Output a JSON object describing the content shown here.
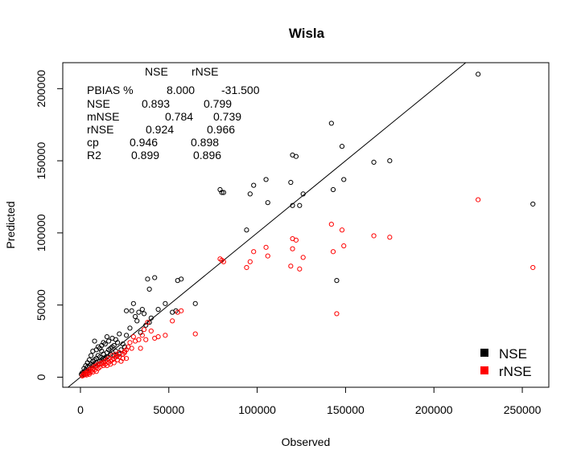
{
  "chart_data": {
    "type": "scatter",
    "title": "Wisla",
    "xlabel": "Observed",
    "ylabel": "Predicted",
    "xlim": [
      -10000,
      265000
    ],
    "ylim": [
      -7000,
      218000
    ],
    "xticks": [
      0,
      50000,
      100000,
      150000,
      200000,
      250000
    ],
    "yticks": [
      0,
      50000,
      100000,
      150000,
      200000
    ],
    "reference_line": {
      "type": "identity",
      "slope": 1,
      "intercept": 0
    },
    "stats_table": {
      "header": [
        "NSE",
        "rNSE"
      ],
      "rows": [
        {
          "label": "PBIAS %",
          "values": [
            "8.000",
            "-31.500"
          ]
        },
        {
          "label": "NSE",
          "values": [
            "0.893",
            "0.799"
          ]
        },
        {
          "label": "mNSE",
          "values": [
            "0.784",
            "0.739"
          ]
        },
        {
          "label": "rNSE",
          "values": [
            "0.924",
            "0.966"
          ]
        },
        {
          "label": "cp",
          "values": [
            "0.946",
            "0.898"
          ]
        },
        {
          "label": "R2",
          "values": [
            "0.899",
            "0.896"
          ]
        }
      ]
    },
    "legend_position": "bottom-right",
    "series": [
      {
        "name": "NSE",
        "color": "#000000",
        "points": [
          [
            225000,
            210000
          ],
          [
            256000,
            120000
          ],
          [
            166000,
            149000
          ],
          [
            175000,
            150000
          ],
          [
            142000,
            176000
          ],
          [
            148000,
            160000
          ],
          [
            149000,
            137000
          ],
          [
            143000,
            130000
          ],
          [
            145000,
            67000
          ],
          [
            120000,
            154000
          ],
          [
            122000,
            153000
          ],
          [
            126000,
            127000
          ],
          [
            124000,
            119000
          ],
          [
            119000,
            135000
          ],
          [
            120000,
            119000
          ],
          [
            105000,
            137000
          ],
          [
            106000,
            121000
          ],
          [
            98000,
            133000
          ],
          [
            96000,
            127000
          ],
          [
            94000,
            102000
          ],
          [
            79000,
            130000
          ],
          [
            80000,
            128000
          ],
          [
            81000,
            128000
          ],
          [
            65000,
            51000
          ],
          [
            57000,
            68000
          ],
          [
            55000,
            67000
          ],
          [
            42000,
            69000
          ],
          [
            38000,
            68000
          ],
          [
            39000,
            61000
          ],
          [
            48000,
            51000
          ],
          [
            44000,
            47000
          ],
          [
            52000,
            45000
          ],
          [
            54000,
            46000
          ],
          [
            30000,
            51000
          ],
          [
            29000,
            46000
          ],
          [
            26000,
            46000
          ],
          [
            33000,
            45000
          ],
          [
            35000,
            47000
          ],
          [
            36000,
            44000
          ],
          [
            31000,
            42000
          ],
          [
            32000,
            39000
          ],
          [
            40000,
            41000
          ],
          [
            39000,
            38000
          ],
          [
            28000,
            34000
          ],
          [
            37000,
            36000
          ],
          [
            34000,
            31000
          ],
          [
            26000,
            29000
          ],
          [
            22000,
            30000
          ],
          [
            20000,
            26000
          ],
          [
            18000,
            27000
          ],
          [
            16000,
            25000
          ],
          [
            15000,
            28000
          ],
          [
            13000,
            24000
          ],
          [
            12000,
            22000
          ],
          [
            8000,
            25000
          ],
          [
            11000,
            20000
          ],
          [
            14000,
            23000
          ],
          [
            10000,
            21000
          ],
          [
            9000,
            19000
          ],
          [
            7000,
            18000
          ],
          [
            6000,
            15000
          ],
          [
            5000,
            12000
          ],
          [
            4000,
            10000
          ],
          [
            3000,
            8000
          ],
          [
            2000,
            6000
          ],
          [
            1000,
            3000
          ],
          [
            500,
            2000
          ],
          [
            17000,
            20000
          ],
          [
            19000,
            22000
          ],
          [
            21000,
            24000
          ],
          [
            23000,
            19000
          ],
          [
            24000,
            23000
          ],
          [
            25000,
            21000
          ],
          [
            12000,
            18000
          ],
          [
            13000,
            16000
          ],
          [
            11000,
            14000
          ],
          [
            9000,
            13000
          ],
          [
            8000,
            12000
          ],
          [
            7000,
            11000
          ],
          [
            6000,
            9000
          ],
          [
            5000,
            8000
          ],
          [
            4000,
            7000
          ],
          [
            3000,
            5000
          ],
          [
            2500,
            4000
          ],
          [
            1500,
            2500
          ],
          [
            15000,
            17000
          ],
          [
            16000,
            19000
          ],
          [
            18000,
            21000
          ],
          [
            20000,
            18000
          ],
          [
            22000,
            16000
          ],
          [
            14000,
            13000
          ],
          [
            10000,
            15000
          ],
          [
            12000,
            12000
          ],
          [
            9000,
            10000
          ],
          [
            6000,
            6000
          ],
          [
            4000,
            4000
          ],
          [
            2000,
            2000
          ],
          [
            7000,
            8000
          ],
          [
            8000,
            9000
          ],
          [
            11000,
            11000
          ],
          [
            13000,
            13000
          ],
          [
            15000,
            14000
          ],
          [
            17000,
            16000
          ],
          [
            19000,
            15000
          ]
        ]
      },
      {
        "name": "rNSE",
        "color": "#ff0000",
        "points": [
          [
            225000,
            123000
          ],
          [
            256000,
            76000
          ],
          [
            166000,
            98000
          ],
          [
            175000,
            97000
          ],
          [
            142000,
            106000
          ],
          [
            148000,
            102000
          ],
          [
            149000,
            91000
          ],
          [
            143000,
            87000
          ],
          [
            145000,
            44000
          ],
          [
            120000,
            96000
          ],
          [
            122000,
            95000
          ],
          [
            126000,
            83000
          ],
          [
            124000,
            75000
          ],
          [
            119000,
            77000
          ],
          [
            120000,
            89000
          ],
          [
            105000,
            90000
          ],
          [
            106000,
            84000
          ],
          [
            98000,
            87000
          ],
          [
            96000,
            80000
          ],
          [
            94000,
            76000
          ],
          [
            79000,
            82000
          ],
          [
            80000,
            81000
          ],
          [
            81000,
            80000
          ],
          [
            65000,
            30000
          ],
          [
            57000,
            46000
          ],
          [
            55000,
            45000
          ],
          [
            52000,
            39000
          ],
          [
            48000,
            29000
          ],
          [
            44000,
            28000
          ],
          [
            42000,
            27000
          ],
          [
            38000,
            38000
          ],
          [
            40000,
            32000
          ],
          [
            36000,
            33000
          ],
          [
            35000,
            29000
          ],
          [
            33000,
            26000
          ],
          [
            30000,
            28000
          ],
          [
            31000,
            25000
          ],
          [
            28000,
            24000
          ],
          [
            27000,
            21000
          ],
          [
            26000,
            19000
          ],
          [
            29000,
            20000
          ],
          [
            25000,
            18000
          ],
          [
            37000,
            26000
          ],
          [
            34000,
            20000
          ],
          [
            24000,
            16000
          ],
          [
            22000,
            17000
          ],
          [
            21000,
            15000
          ],
          [
            20000,
            14000
          ],
          [
            19000,
            13000
          ],
          [
            18000,
            12000
          ],
          [
            17000,
            11000
          ],
          [
            16000,
            10000
          ],
          [
            15000,
            12000
          ],
          [
            14000,
            9000
          ],
          [
            13000,
            8000
          ],
          [
            12000,
            10000
          ],
          [
            11000,
            7000
          ],
          [
            10000,
            6000
          ],
          [
            9000,
            8000
          ],
          [
            8000,
            5000
          ],
          [
            7000,
            6000
          ],
          [
            6000,
            4000
          ],
          [
            5000,
            3000
          ],
          [
            4000,
            2500
          ],
          [
            3000,
            2000
          ],
          [
            2000,
            1500
          ],
          [
            1000,
            800
          ],
          [
            18000,
            15000
          ],
          [
            20000,
            16000
          ],
          [
            22000,
            14000
          ],
          [
            24000,
            13000
          ],
          [
            25000,
            17000
          ],
          [
            16000,
            13000
          ],
          [
            14000,
            11000
          ],
          [
            12000,
            9000
          ],
          [
            10000,
            9000
          ],
          [
            9000,
            7000
          ],
          [
            8000,
            7500
          ],
          [
            7000,
            5000
          ],
          [
            6000,
            6000
          ],
          [
            5000,
            5000
          ],
          [
            4000,
            4000
          ],
          [
            3000,
            3000
          ],
          [
            2000,
            2500
          ],
          [
            1500,
            1200
          ],
          [
            15000,
            8000
          ],
          [
            13000,
            10000
          ],
          [
            11000,
            9000
          ],
          [
            17000,
            9000
          ],
          [
            19000,
            10000
          ],
          [
            21000,
            12000
          ],
          [
            23000,
            11000
          ],
          [
            26000,
            13000
          ],
          [
            9000,
            4000
          ],
          [
            7000,
            3500
          ],
          [
            5000,
            2000
          ],
          [
            3500,
            1500
          ]
        ]
      }
    ]
  }
}
